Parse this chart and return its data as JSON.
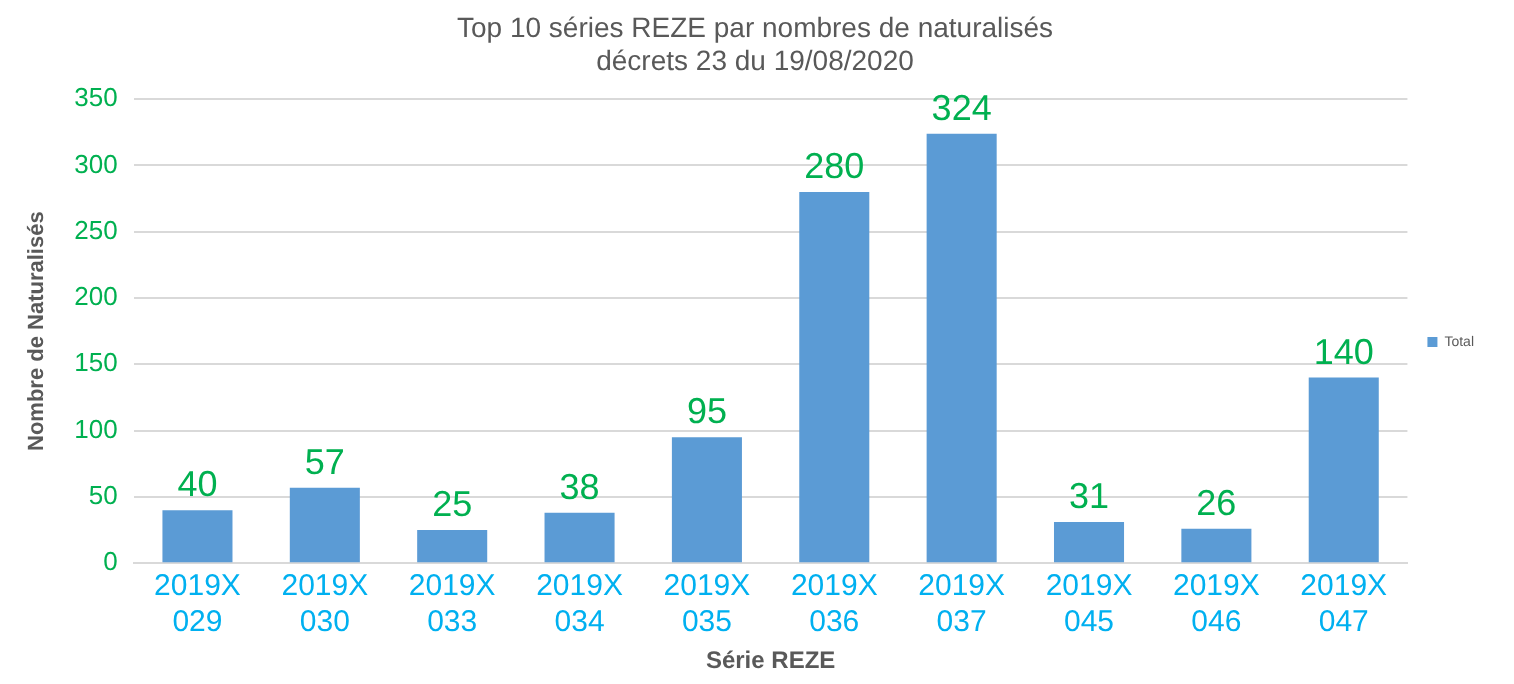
{
  "chart_data": {
    "type": "bar",
    "title": "Top 10 séries REZE par nombres de naturalisés\ndécrets 23 du 19/08/2020",
    "xlabel": "Série REZE",
    "ylabel": "Nombre de Naturalisés",
    "categories": [
      "2019X 029",
      "2019X 030",
      "2019X 033",
      "2019X 034",
      "2019X 035",
      "2019X 036",
      "2019X 037",
      "2019X 045",
      "2019X 046",
      "2019X 047"
    ],
    "series": [
      {
        "name": "Total",
        "color": "#5b9bd5",
        "values": [
          40,
          57,
          25,
          38,
          95,
          280,
          324,
          31,
          26,
          140
        ]
      }
    ],
    "ylim": [
      0,
      350
    ],
    "yticks": [
      0,
      50,
      100,
      150,
      200,
      250,
      300,
      350
    ],
    "grid": "y",
    "legend": "right",
    "data_labels": true
  }
}
